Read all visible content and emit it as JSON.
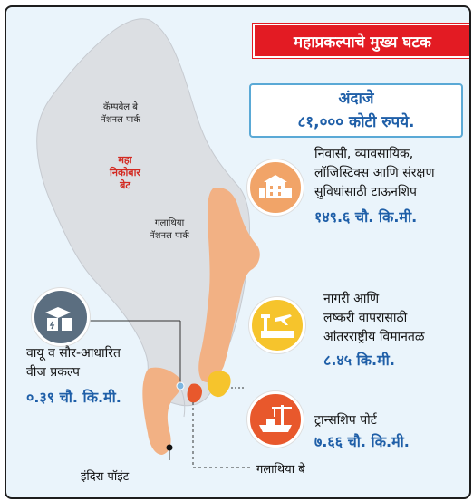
{
  "title": "महाप्रकल्पाचे मुख्य घटक",
  "cost": {
    "line1": "अंदाजे",
    "line2": "८१,००० कोटी रुपये."
  },
  "map_labels": {
    "campbell_bay": [
      "कॅम्पबेल बे",
      "नॅशनल पार्क"
    ],
    "great_nicobar": [
      "महा",
      "निकोबार",
      "बेट"
    ],
    "galathea_park": [
      "गलाथिया",
      "नॅशनल पार्क"
    ]
  },
  "components": [
    {
      "name": "township",
      "icon": "buildings-icon",
      "color": "#f1a468",
      "lines": [
        "निवासी, व्यावसायिक,",
        "लॉजिस्टिक्स आणि संरक्षण",
        "सुविधांसाठी टाऊनशिप"
      ],
      "area": "१४९.६ चौ. कि.मी."
    },
    {
      "name": "airport",
      "icon": "airport-icon",
      "color": "#f6c42c",
      "lines": [
        "नागरी आणि",
        "लष्करी वापरासाठी",
        "आंतरराष्ट्रीय विमानतळ"
      ],
      "area": "८.४५ कि.मी."
    },
    {
      "name": "port",
      "icon": "port-crane-icon",
      "color": "#e8582c",
      "lines": [
        "ट्रान्सशिप पोर्ट"
      ],
      "area": "७.६६ चौ. कि.मी."
    },
    {
      "name": "power",
      "icon": "power-plant-icon",
      "color": "#5b6e80",
      "lines": [
        "वायू व सौर-आधारित",
        "वीज प्रकल्प"
      ],
      "area": "०.३९ चौ. कि.मी."
    }
  ],
  "points": {
    "indira_point": "इंदिरा पॉइंट",
    "galathea_bay": "गलाथिया बे"
  },
  "colors": {
    "accent_red": "#e31b23",
    "value_blue": "#1f5fa8",
    "island_grey": "#dcdfe3",
    "zone_orange": "#f2b184"
  }
}
